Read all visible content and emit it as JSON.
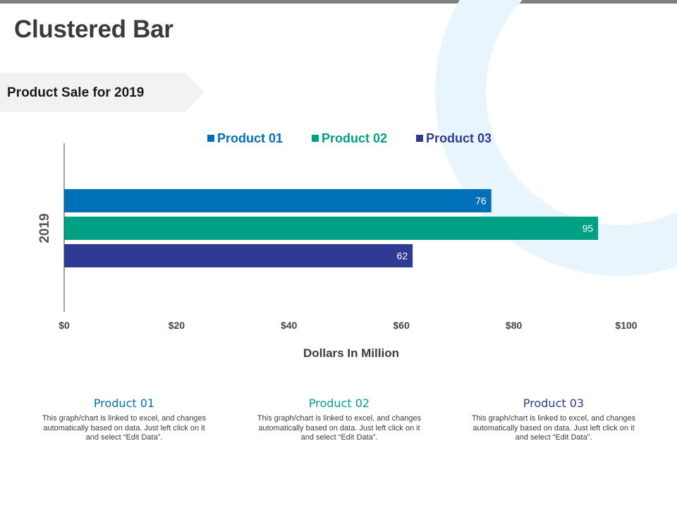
{
  "page": {
    "title": "Clustered Bar",
    "subtitle": "Product Sale for 2019"
  },
  "colors": {
    "product_01": "#0070b8",
    "product_02": "#00a085",
    "product_03": "#2e3a94",
    "ring": "#e9f5fd"
  },
  "chart_data": {
    "type": "bar",
    "orientation": "horizontal",
    "categories": [
      "2019"
    ],
    "series": [
      {
        "name": "Product 01",
        "values": [
          76
        ],
        "color": "#0070b8"
      },
      {
        "name": "Product 02",
        "values": [
          95
        ],
        "color": "#00a085"
      },
      {
        "name": "Product 03",
        "values": [
          62
        ],
        "color": "#2e3a94"
      }
    ],
    "xlabel": "Dollars In Million",
    "ylabel": "",
    "xlim": [
      0,
      100
    ],
    "xticks": [
      0,
      20,
      40,
      60,
      80,
      100
    ],
    "xtick_labels": [
      "$0",
      "$20",
      "$40",
      "$60",
      "$80",
      "$100"
    ],
    "data_labels": [
      "76",
      "95",
      "62"
    ],
    "legend": "top",
    "grid": false
  },
  "info_cards": [
    {
      "title": "Product 01",
      "text": "This graph/chart is linked to excel, and changes automatically based on data. Just left click on it and select “Edit Data”."
    },
    {
      "title": "Product 02",
      "text": "This graph/chart is linked to excel, and changes automatically based on data. Just left click on it and select “Edit Data”."
    },
    {
      "title": "Product 03",
      "text": "This graph/chart is linked to excel, and changes automatically based on data. Just left click on it and select “Edit Data”."
    }
  ]
}
